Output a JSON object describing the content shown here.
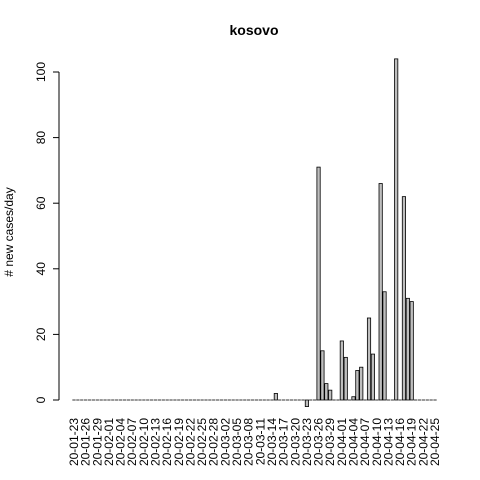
{
  "chart_data": {
    "type": "bar",
    "title": "kosovo",
    "ylabel": "# new cases/day",
    "xlabel": "",
    "ylim": [
      0,
      104
    ],
    "yticks": [
      0,
      20,
      40,
      60,
      80,
      100
    ],
    "categories": [
      "20-01-23",
      "20-01-24",
      "20-01-25",
      "20-01-26",
      "20-01-27",
      "20-01-28",
      "20-01-29",
      "20-01-30",
      "20-01-31",
      "20-02-01",
      "20-02-02",
      "20-02-03",
      "20-02-04",
      "20-02-05",
      "20-02-06",
      "20-02-07",
      "20-02-08",
      "20-02-09",
      "20-02-10",
      "20-02-11",
      "20-02-12",
      "20-02-13",
      "20-02-14",
      "20-02-15",
      "20-02-16",
      "20-02-17",
      "20-02-18",
      "20-02-19",
      "20-02-20",
      "20-02-21",
      "20-02-22",
      "20-02-23",
      "20-02-24",
      "20-02-25",
      "20-02-26",
      "20-02-27",
      "20-02-28",
      "20-02-29",
      "20-03-01",
      "20-03-02",
      "20-03-03",
      "20-03-04",
      "20-03-05",
      "20-03-06",
      "20-03-07",
      "20-03-08",
      "20-03-09",
      "20-03-10",
      "20-03-11",
      "20-03-12",
      "20-03-13",
      "20-03-14",
      "20-03-15",
      "20-03-16",
      "20-03-17",
      "20-03-18",
      "20-03-19",
      "20-03-20",
      "20-03-21",
      "20-03-22",
      "20-03-23",
      "20-03-24",
      "20-03-25",
      "20-03-26",
      "20-03-27",
      "20-03-28",
      "20-03-29",
      "20-03-30",
      "20-03-31",
      "20-04-01",
      "20-04-02",
      "20-04-03",
      "20-04-04",
      "20-04-05",
      "20-04-06",
      "20-04-07",
      "20-04-08",
      "20-04-09",
      "20-04-10",
      "20-04-11",
      "20-04-12",
      "20-04-13",
      "20-04-14",
      "20-04-15",
      "20-04-16",
      "20-04-17",
      "20-04-18",
      "20-04-19",
      "20-04-20",
      "20-04-21",
      "20-04-22",
      "20-04-23",
      "20-04-24",
      "20-04-25"
    ],
    "xtick_labels": [
      "20-01-23",
      "20-01-26",
      "20-01-29",
      "20-02-01",
      "20-02-04",
      "20-02-07",
      "20-02-10",
      "20-02-13",
      "20-02-16",
      "20-02-19",
      "20-02-22",
      "20-02-25",
      "20-02-28",
      "20-03-02",
      "20-03-05",
      "20-03-08",
      "20-03-11",
      "20-03-14",
      "20-03-17",
      "20-03-20",
      "20-03-23",
      "20-03-26",
      "20-03-29",
      "20-04-01",
      "20-04-04",
      "20-04-07",
      "20-04-10",
      "20-04-13",
      "20-04-16",
      "20-04-19",
      "20-04-22",
      "20-04-25"
    ],
    "series": [
      {
        "values": [
          0,
          0,
          0,
          0,
          0,
          0,
          0,
          0,
          0,
          0,
          0,
          0,
          0,
          0,
          0,
          0,
          0,
          0,
          0,
          0,
          0,
          0,
          0,
          0,
          0,
          0,
          0,
          0,
          0,
          0,
          0,
          0,
          0,
          0,
          0,
          0,
          0,
          0,
          0,
          0,
          0,
          0,
          0,
          0,
          0,
          0,
          0,
          0,
          0,
          0,
          0,
          0,
          2,
          0,
          0,
          0,
          0,
          0,
          0,
          0,
          -2,
          0,
          0,
          71,
          15,
          5,
          3,
          0,
          0,
          18,
          13,
          0,
          1,
          9,
          10,
          0,
          25,
          14,
          0,
          66,
          33,
          0,
          0,
          104,
          0,
          62,
          31,
          30,
          0,
          0,
          0,
          0,
          0,
          0
        ]
      }
    ]
  }
}
